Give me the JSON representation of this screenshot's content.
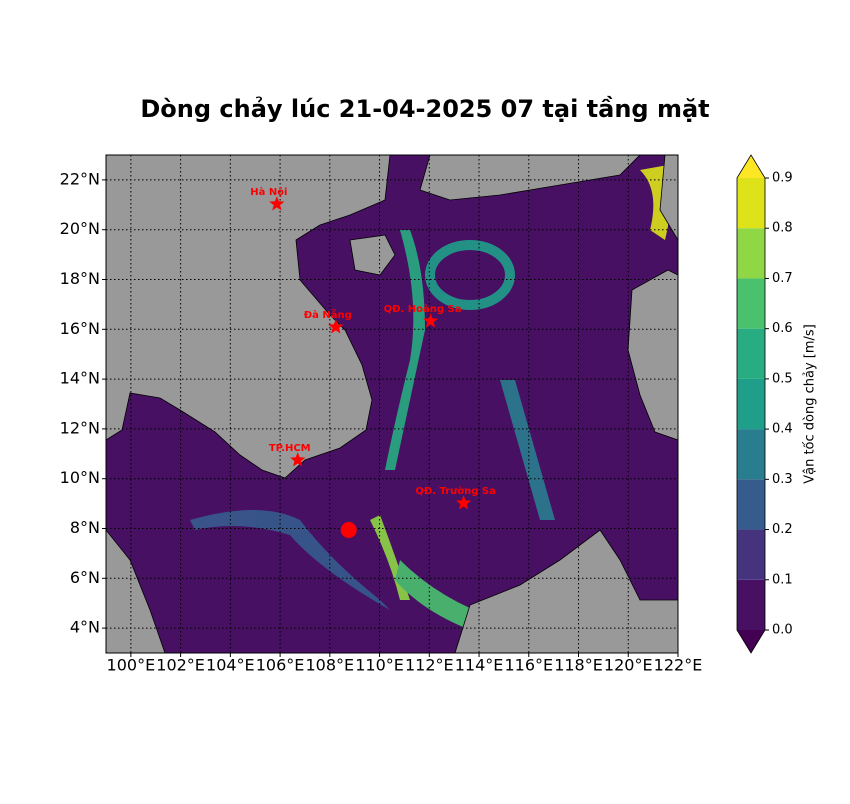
{
  "chart_data": {
    "type": "map",
    "title": "Dòng chảy lúc 21-04-2025 07 tại tầng mặt",
    "xlim": [
      99,
      122
    ],
    "ylim": [
      3,
      23
    ],
    "xticks": [
      {
        "value": 100,
        "label": "100°E"
      },
      {
        "value": 102,
        "label": "102°E"
      },
      {
        "value": 104,
        "label": "104°E"
      },
      {
        "value": 106,
        "label": "106°E"
      },
      {
        "value": 108,
        "label": "108°E"
      },
      {
        "value": 110,
        "label": "110°E"
      },
      {
        "value": 112,
        "label": "112°E"
      },
      {
        "value": 114,
        "label": "114°E"
      },
      {
        "value": 116,
        "label": "116°E"
      },
      {
        "value": 118,
        "label": "118°E"
      },
      {
        "value": 120,
        "label": "120°E"
      },
      {
        "value": 122,
        "label": "122°E"
      }
    ],
    "yticks": [
      {
        "value": 4,
        "label": "4°N"
      },
      {
        "value": 6,
        "label": "6°N"
      },
      {
        "value": 8,
        "label": "8°N"
      },
      {
        "value": 10,
        "label": "10°N"
      },
      {
        "value": 12,
        "label": "12°N"
      },
      {
        "value": 14,
        "label": "14°N"
      },
      {
        "value": 16,
        "label": "16°N"
      },
      {
        "value": 18,
        "label": "18°N"
      },
      {
        "value": 20,
        "label": "20°N"
      },
      {
        "value": 22,
        "label": "22°N"
      }
    ],
    "grid": true,
    "points": [
      {
        "name": "Hà Nội",
        "lon": 105.87,
        "lat": 21.03,
        "color": "#ff0000"
      },
      {
        "name": "Đà Nẵng",
        "lon": 108.24,
        "lat": 16.09,
        "color": "#ff0000"
      },
      {
        "name": "QĐ. Hoàng Sa",
        "lon": 112.05,
        "lat": 16.33,
        "color": "#ff0000"
      },
      {
        "name": "TP.HCM",
        "lon": 106.71,
        "lat": 10.75,
        "color": "#ff0000"
      },
      {
        "name": "QĐ. Trường Sa",
        "lon": 113.38,
        "lat": 9.02,
        "color": "#ff0000"
      }
    ],
    "marker": {
      "lon": 108.76,
      "lat": 7.94,
      "color": "#ff0000"
    },
    "colorbar": {
      "label": "Vận tốc dòng chảy [m/s]",
      "lim": [
        0,
        0.9
      ],
      "ticks": [
        {
          "value": 0,
          "label": "0.0"
        },
        0.1,
        0.2,
        0.3,
        0.4,
        0.5,
        0.6,
        0.7,
        0.8,
        0.9
      ],
      "colors": [
        "#471063",
        "#45337d",
        "#365c8d",
        "#287d8e",
        "#1f9e89",
        "#27ad81",
        "#4ac16d",
        "#8fd744",
        "#dde318"
      ],
      "extend_colors": [
        "#440154",
        "#fde725"
      ]
    }
  }
}
